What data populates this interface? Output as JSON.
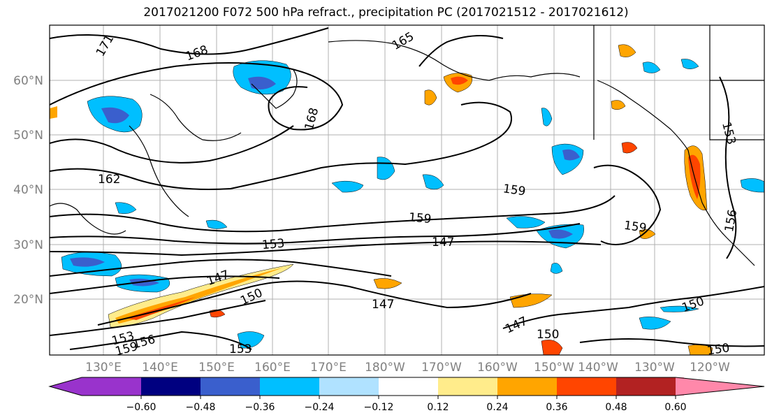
{
  "title": "2017021200 F072 500 hPa refract., precipitation PC (2017021512 - 2017021612)",
  "lat_labels": [
    "60°N",
    "50°N",
    "40°N",
    "30°N",
    "20°N"
  ],
  "lon_labels": [
    "130°E",
    "140°E",
    "150°E",
    "160°E",
    "170°E",
    "180°W",
    "170°W",
    "160°W",
    "150°W",
    "140°W",
    "130°W",
    "120°W"
  ],
  "contour_labels": [
    "171",
    "168",
    "165",
    "168",
    "162",
    "159",
    "159",
    "159",
    "153",
    "147",
    "147",
    "150",
    "147",
    "147",
    "150",
    "150",
    "153",
    "156",
    "159",
    "153",
    "150",
    "153",
    "156"
  ],
  "colorbar": {
    "tick_labels": [
      "−0.60",
      "−0.48",
      "−0.36",
      "−0.24",
      "−0.12",
      "0.12",
      "0.24",
      "0.36",
      "0.48",
      "0.60"
    ],
    "colors": [
      "#9933cc",
      "#000080",
      "#3a5fcd",
      "#00bfff",
      "#b0e2ff",
      "#ffffff",
      "#ffec8b",
      "#ffa500",
      "#ff4500",
      "#b22222",
      "#ff88aa"
    ]
  },
  "colors": {
    "contour": "#000000",
    "grid": "#b0b0b0",
    "axis_label": "#808080"
  }
}
